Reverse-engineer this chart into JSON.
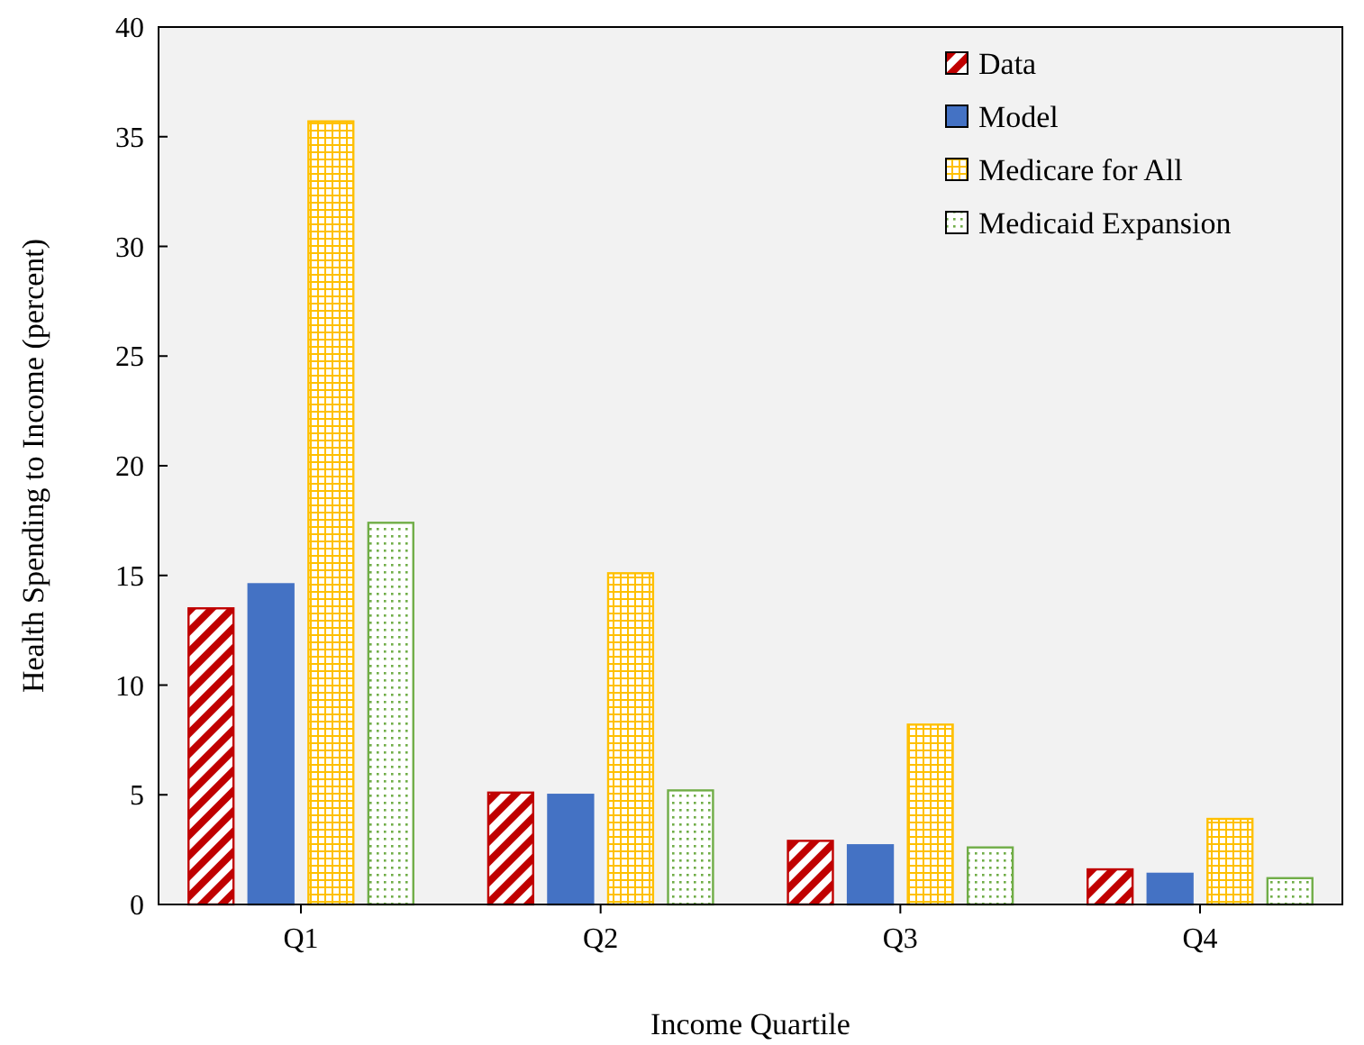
{
  "chart_data": {
    "type": "bar",
    "xlabel": "Income Quartile",
    "ylabel": "Health Spending to Income (percent)",
    "categories": [
      "Q1",
      "Q2",
      "Q3",
      "Q4"
    ],
    "series": [
      {
        "name": "Data",
        "color": "#c00000",
        "values": [
          13.5,
          5.1,
          2.9,
          1.6
        ]
      },
      {
        "name": "Model",
        "color": "#4472c4",
        "values": [
          14.6,
          5.0,
          2.7,
          1.4
        ]
      },
      {
        "name": "Medicare for All",
        "color": "#ffc000",
        "values": [
          35.7,
          15.1,
          8.2,
          3.9
        ]
      },
      {
        "name": "Medicaid Expansion",
        "color": "#70ad47",
        "values": [
          17.4,
          5.2,
          2.6,
          1.2
        ]
      }
    ],
    "ylim": [
      0,
      40
    ],
    "yticks": [
      0,
      5,
      10,
      15,
      20,
      25,
      30,
      35,
      40
    ],
    "grid": false,
    "legend": "top right"
  }
}
